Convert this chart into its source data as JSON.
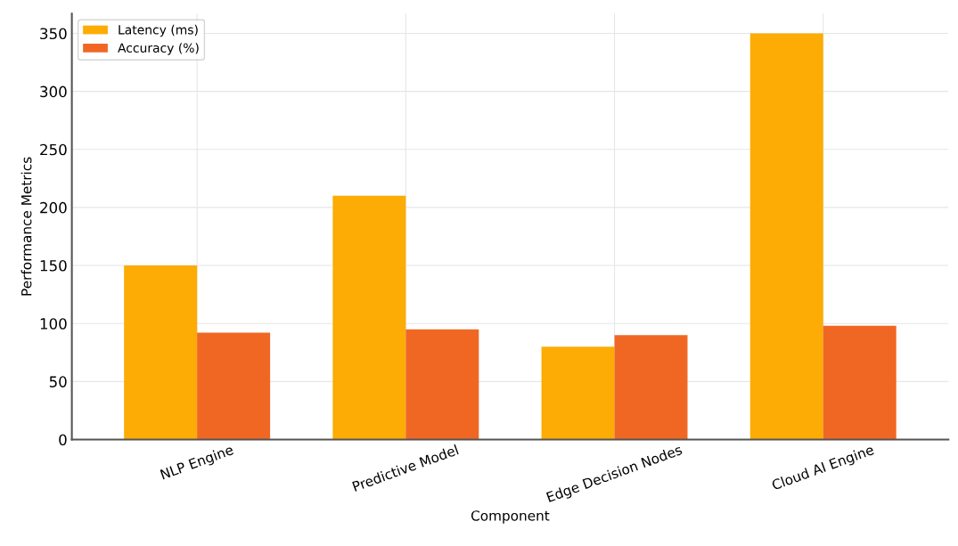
{
  "chart_data": {
    "type": "bar",
    "xlabel": "Component",
    "ylabel": "Performance Metrics",
    "categories": [
      "NLP Engine",
      "Predictive Model",
      "Edge Decision Nodes",
      "Cloud AI Engine"
    ],
    "series": [
      {
        "name": "Latency (ms)",
        "color": "#fcac04",
        "values": [
          150,
          210,
          80,
          350
        ]
      },
      {
        "name": "Accuracy (%)",
        "color": "#f06724",
        "values": [
          92,
          95,
          90,
          98
        ]
      }
    ],
    "ylim": [
      0,
      367
    ],
    "yticks": [
      0,
      50,
      100,
      150,
      200,
      250,
      300,
      350
    ],
    "grid": true,
    "legend": "top left"
  }
}
